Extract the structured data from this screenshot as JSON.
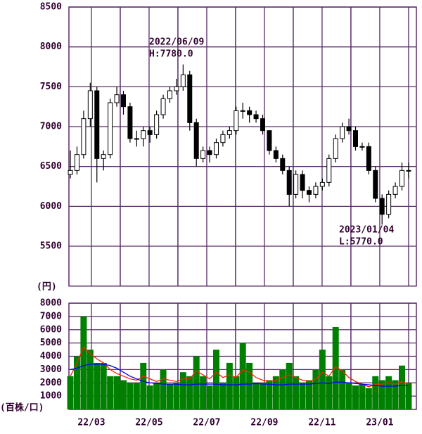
{
  "chart_data": [
    {
      "type": "candlestick",
      "y_label": "(円)",
      "annotations": [
        [
          "2022/06/09",
          "H:7780.0"
        ],
        [
          "2023/01/04",
          "L:5770.0"
        ]
      ],
      "xlim": [
        2.22,
        14.27
      ],
      "xticks": [
        {
          "value": 3,
          "label": "22/03"
        },
        {
          "value": 5,
          "label": "22/05"
        },
        {
          "value": 7,
          "label": "22/07"
        },
        {
          "value": 9,
          "label": "22/09"
        },
        {
          "value": 11,
          "label": "22/11"
        },
        {
          "value": 13,
          "label": "23/01"
        }
      ],
      "ylim": [
        5000,
        8500
      ],
      "yticks": [
        5500,
        6000,
        6500,
        7000,
        7500,
        8000,
        8500
      ],
      "x": [
        2.27,
        2.5,
        2.73,
        2.96,
        3.19,
        3.42,
        3.65,
        3.88,
        4.11,
        4.34,
        4.57,
        4.8,
        5.03,
        5.26,
        5.49,
        5.72,
        5.95,
        6.18,
        6.41,
        6.64,
        6.87,
        7.1,
        7.33,
        7.56,
        7.79,
        8.02,
        8.25,
        8.48,
        8.71,
        8.94,
        9.17,
        9.4,
        9.63,
        9.86,
        10.09,
        10.32,
        10.55,
        10.78,
        11.01,
        11.24,
        11.47,
        11.7,
        11.93,
        12.16,
        12.39,
        12.62,
        12.85,
        13.08,
        13.31,
        13.54,
        13.77,
        14.0
      ],
      "open": [
        6400,
        6450,
        6650,
        7100,
        7450,
        6600,
        6650,
        7300,
        7400,
        7250,
        6850,
        6850,
        6950,
        6900,
        7150,
        7350,
        7450,
        7500,
        7650,
        7050,
        6600,
        6700,
        6650,
        6800,
        6900,
        6950,
        7200,
        7200,
        7150,
        7100,
        6950,
        6700,
        6600,
        6450,
        6150,
        6400,
        6200,
        6150,
        6250,
        6300,
        6600,
        6850,
        7000,
        6950,
        6750,
        6750,
        6450,
        6100,
        5900,
        6150,
        6250,
        6450
      ],
      "high": [
        6700,
        6750,
        7200,
        7550,
        7500,
        6700,
        7350,
        7500,
        7450,
        7300,
        6950,
        7000,
        7000,
        7200,
        7400,
        7500,
        7600,
        7780,
        7700,
        7100,
        6750,
        6750,
        6850,
        6950,
        7000,
        7250,
        7300,
        7250,
        7200,
        7150,
        6950,
        6750,
        6650,
        6500,
        6450,
        6450,
        6250,
        6300,
        6350,
        6650,
        6900,
        7050,
        7100,
        7000,
        6800,
        6800,
        6500,
        6150,
        6200,
        6300,
        6550,
        6550
      ],
      "low": [
        6350,
        6400,
        6600,
        7000,
        6300,
        6450,
        6600,
        7250,
        7150,
        6800,
        6750,
        6750,
        6800,
        6850,
        7100,
        7300,
        7400,
        7450,
        6950,
        6500,
        6550,
        6550,
        6600,
        6750,
        6850,
        6900,
        7100,
        7050,
        7050,
        6900,
        6650,
        6550,
        6400,
        6000,
        6100,
        6100,
        6050,
        6100,
        6200,
        6250,
        6550,
        6800,
        6900,
        6700,
        6700,
        6400,
        6050,
        5770,
        5850,
        6100,
        6200,
        6350
      ],
      "close": [
        6450,
        6650,
        7100,
        7450,
        6600,
        6650,
        7300,
        7400,
        7250,
        6850,
        6850,
        6950,
        6900,
        7150,
        7350,
        7450,
        7500,
        7650,
        7050,
        6600,
        6700,
        6650,
        6800,
        6900,
        6950,
        7200,
        7200,
        7150,
        7100,
        6950,
        6700,
        6600,
        6450,
        6150,
        6400,
        6200,
        6150,
        6250,
        6300,
        6600,
        6850,
        7000,
        6950,
        6750,
        6750,
        6450,
        6100,
        5900,
        6150,
        6250,
        6450,
        6450
      ]
    },
    {
      "type": "volume",
      "y_label": "(百株/口)",
      "xlim": [
        2.22,
        14.27
      ],
      "xticks": [
        {
          "value": 3,
          "label": "22/03"
        },
        {
          "value": 5,
          "label": "22/05"
        },
        {
          "value": 7,
          "label": "22/07"
        },
        {
          "value": 9,
          "label": "22/09"
        },
        {
          "value": 11,
          "label": "22/11"
        },
        {
          "value": 13,
          "label": "23/01"
        }
      ],
      "ylim": [
        0,
        8000
      ],
      "yticks": [
        1000,
        2000,
        3000,
        4000,
        5000,
        6000,
        7000,
        8000
      ],
      "x": [
        2.27,
        2.5,
        2.73,
        2.96,
        3.19,
        3.42,
        3.65,
        3.88,
        4.11,
        4.34,
        4.57,
        4.8,
        5.03,
        5.26,
        5.49,
        5.72,
        5.95,
        6.18,
        6.41,
        6.64,
        6.87,
        7.1,
        7.33,
        7.56,
        7.79,
        8.02,
        8.25,
        8.48,
        8.71,
        8.94,
        9.17,
        9.4,
        9.63,
        9.86,
        10.09,
        10.32,
        10.55,
        10.78,
        11.01,
        11.24,
        11.47,
        11.7,
        11.93,
        12.16,
        12.39,
        12.62,
        12.85,
        13.08,
        13.31,
        13.54,
        13.77,
        14.0
      ],
      "color": "#008000",
      "values": [
        2500,
        4000,
        7000,
        4500,
        3500,
        3500,
        2500,
        2500,
        2200,
        2000,
        2000,
        3500,
        1800,
        2000,
        3000,
        1900,
        2000,
        2800,
        2500,
        4000,
        2500,
        1800,
        4500,
        2000,
        3500,
        2500,
        5000,
        3500,
        2000,
        2000,
        2200,
        2500,
        3000,
        3500,
        2500,
        2000,
        2200,
        3000,
        4500,
        2500,
        6200,
        3000,
        2000,
        1800,
        1900,
        1600,
        2500,
        2200,
        2500,
        2200,
        3300,
        2000
      ],
      "series": [
        {
          "color": "#ff2000",
          "values": [
            2500,
            3500,
            4700,
            4200,
            3800,
            3500,
            3000,
            2700,
            2500,
            2300,
            2200,
            2500,
            2300,
            2100,
            2300,
            2200,
            2100,
            2300,
            2300,
            2900,
            2600,
            2300,
            2800,
            2400,
            2600,
            2400,
            3000,
            2800,
            2400,
            2200,
            2100,
            2200,
            2400,
            2600,
            2400,
            2200,
            2100,
            2300,
            2800,
            2500,
            3200,
            2900,
            2400,
            2100,
            1900,
            1700,
            1900,
            1900,
            2000,
            1900,
            2100,
            1900
          ]
        },
        {
          "color": "#0000ff",
          "values": [
            3000,
            3100,
            3300,
            3400,
            3400,
            3400,
            3300,
            3100,
            2800,
            2500,
            2300,
            2100,
            2000,
            1950,
            1900,
            1900,
            1900,
            1850,
            1850,
            1900,
            1900,
            1900,
            1900,
            1850,
            1850,
            1850,
            1900,
            1900,
            1950,
            1900,
            1900,
            1850,
            1850,
            1900,
            1900,
            1900,
            1900,
            1950,
            2000,
            1950,
            2050,
            2050,
            2000,
            1950,
            1900,
            1850,
            1800,
            1750,
            1750,
            1750,
            1800,
            1800
          ]
        }
      ]
    }
  ]
}
